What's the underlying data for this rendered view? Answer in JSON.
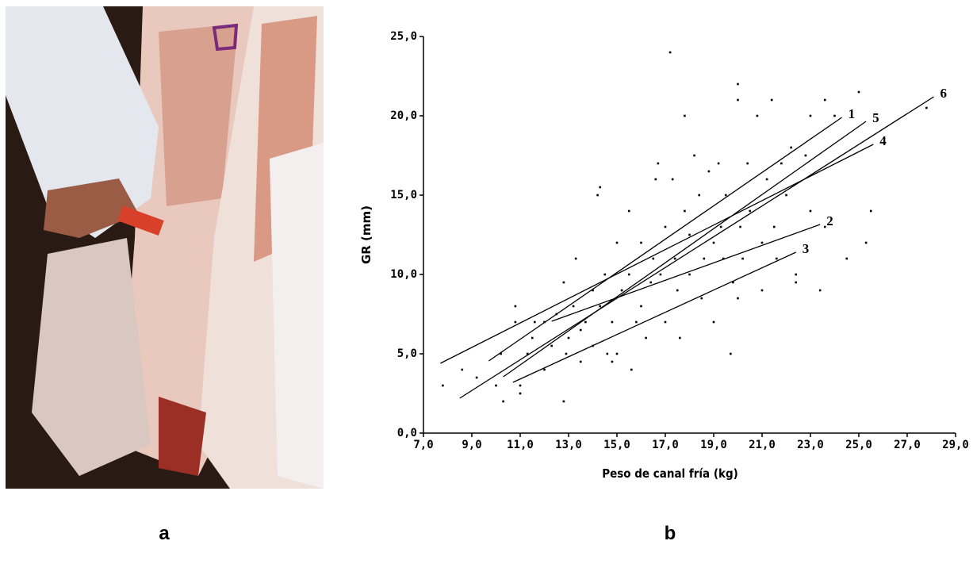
{
  "panel_labels": [
    "a",
    "b"
  ],
  "chart_data": {
    "type": "scatter",
    "x_label": "Peso de canal fría (kg)",
    "y_label": "GR (mm)",
    "xlim": [
      7,
      29
    ],
    "xticks": [
      {
        "value": 7,
        "label": "7,0"
      },
      {
        "value": 9,
        "label": "9,0"
      },
      {
        "value": 11,
        "label": "11,0"
      },
      {
        "value": 13,
        "label": "13,0"
      },
      {
        "value": 15,
        "label": "15,0"
      },
      {
        "value": 17,
        "label": "17,0"
      },
      {
        "value": 19,
        "label": "19,0"
      },
      {
        "value": 21,
        "label": "21,0"
      },
      {
        "value": 23,
        "label": "23,0"
      },
      {
        "value": 25,
        "label": "25,0"
      },
      {
        "value": 27,
        "label": "27,0"
      },
      {
        "value": 29,
        "label": "29,0"
      }
    ],
    "ylim": [
      0,
      25
    ],
    "yticks": [
      {
        "value": 0,
        "label": "0,0"
      },
      {
        "value": 5,
        "label": "5,0"
      },
      {
        "value": 10,
        "label": "10,0"
      },
      {
        "value": 15,
        "label": "15,0"
      },
      {
        "value": 20,
        "label": "20,0"
      },
      {
        "value": 25,
        "label": "25,0"
      }
    ],
    "points": {
      "color": "#000000",
      "x": [
        7.8,
        8.6,
        9.2,
        10,
        10.3,
        10.2,
        10.8,
        10.8,
        11,
        11,
        11.3,
        11.5,
        11.6,
        12,
        12,
        12.3,
        12.5,
        12.8,
        12.8,
        12.9,
        13,
        13.2,
        13.3,
        13.5,
        13.5,
        13.7,
        14,
        14,
        14.2,
        14.3,
        14.3,
        14.5,
        14.6,
        14.8,
        14.8,
        15,
        15,
        15.2,
        15.5,
        15.5,
        15.6,
        15.8,
        16,
        16,
        16.2,
        16.4,
        16.5,
        16.6,
        16.7,
        16.8,
        17,
        17,
        17.2,
        17.3,
        17.4,
        17.5,
        17.6,
        17.8,
        17.8,
        18,
        18,
        18.2,
        18.4,
        18.5,
        18.6,
        18.8,
        19,
        19,
        19.2,
        19.3,
        19.4,
        19.5,
        19.7,
        19.8,
        20,
        20,
        20,
        20.1,
        20.2,
        20.4,
        20.5,
        20.8,
        21,
        21,
        21.2,
        21.4,
        21.5,
        21.6,
        21.8,
        22,
        22.2,
        22.4,
        22.4,
        22.8,
        23,
        23,
        23.4,
        23.6,
        23.6,
        24,
        24.5,
        25,
        25.3,
        25.5,
        27.8
      ],
      "y": [
        3,
        4,
        3.5,
        3,
        2,
        5,
        8,
        7,
        3,
        2.5,
        5,
        6,
        7,
        4,
        7,
        5.5,
        7.5,
        9.5,
        2,
        5,
        6,
        8,
        11,
        6.5,
        4.5,
        7,
        9,
        5.5,
        15,
        15.5,
        8,
        10,
        5,
        4.5,
        7,
        5,
        12,
        9,
        10,
        14,
        4,
        7,
        8,
        12,
        6,
        9.5,
        11,
        16,
        17,
        10,
        13,
        7,
        24,
        16,
        11,
        9,
        6,
        20,
        14,
        10,
        12.5,
        17.5,
        15,
        8.5,
        11,
        16.5,
        12,
        7,
        17,
        13,
        11,
        15,
        5,
        9.5,
        22,
        21,
        8.5,
        13,
        11,
        17,
        14,
        20,
        9,
        12,
        16,
        21,
        13,
        11,
        17,
        15,
        18,
        10,
        9.5,
        17.5,
        20,
        14,
        9,
        21,
        13,
        20,
        11,
        21.5,
        12,
        14,
        20.5
      ]
    },
    "lines": [
      {
        "name": "1",
        "color": "#000000",
        "x": [
          9.7,
          24.3
        ],
        "y": [
          4.55,
          19.9
        ]
      },
      {
        "name": "5",
        "color": "#000000",
        "x": [
          10.3,
          25.3
        ],
        "y": [
          3.55,
          19.65
        ]
      },
      {
        "name": "6",
        "color": "#000000",
        "x": [
          8.5,
          28.1
        ],
        "y": [
          2.2,
          21.2
        ]
      },
      {
        "name": "4",
        "color": "#000000",
        "x": [
          7.7,
          25.6
        ],
        "y": [
          4.4,
          18.2
        ]
      },
      {
        "name": "2",
        "color": "#000000",
        "x": [
          12.3,
          23.4
        ],
        "y": [
          7.05,
          13.15
        ]
      },
      {
        "name": "3",
        "color": "#000000",
        "x": [
          10.7,
          22.4
        ],
        "y": [
          3.2,
          11.4
        ]
      }
    ]
  }
}
